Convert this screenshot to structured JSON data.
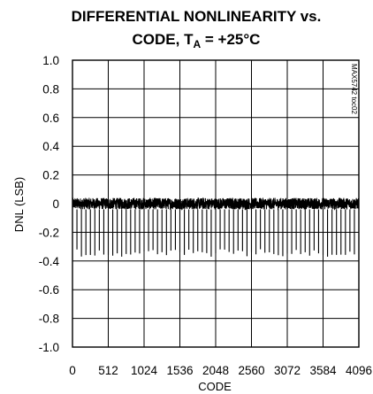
{
  "chart_data": {
    "type": "line",
    "title_line1": "DIFFERENTIAL NONLINEARITY vs.",
    "title_line2_prefix": "CODE, T",
    "title_line2_sub": "A",
    "title_line2_suffix": " = +25°C",
    "xlabel": "CODE",
    "ylabel": "DNL (LSB)",
    "watermark": "MAX5742 toc02",
    "xlim": [
      0,
      4096
    ],
    "ylim": [
      -1.0,
      1.0
    ],
    "x_ticks": [
      0,
      512,
      1024,
      1536,
      2048,
      2560,
      3072,
      3584,
      4096
    ],
    "x_tick_labels": [
      "0",
      "512",
      "1024",
      "1536",
      "2048",
      "2560",
      "3072",
      "3584",
      "4096"
    ],
    "x_grid": [
      0,
      512,
      1024,
      1536,
      2048,
      2560,
      3072,
      3584,
      4096
    ],
    "y_ticks": [
      1.0,
      0.8,
      0.6,
      0.4,
      0.2,
      0,
      -0.2,
      -0.4,
      -0.6,
      -0.8,
      -1.0
    ],
    "y_tick_labels": [
      "1.0",
      "0.8",
      "0.6",
      "0.4",
      "0.2",
      "0",
      "-0.2",
      "-0.4",
      "-0.6",
      "-0.8",
      "-1.0"
    ],
    "grid": true,
    "series": [
      {
        "band": {
          "max": 0.04,
          "min": -0.04
        },
        "spikes": {
          "every_codes": 64,
          "min_value": -0.37
        },
        "color": "#000000"
      }
    ]
  }
}
